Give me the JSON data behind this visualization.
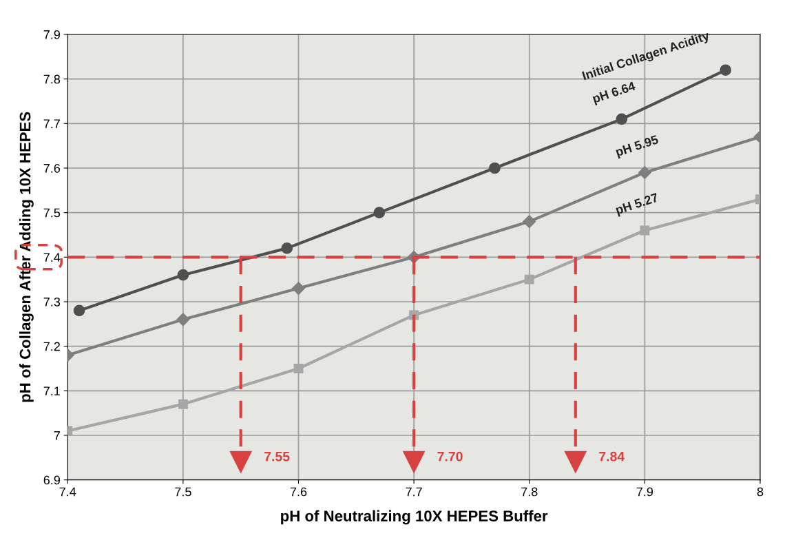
{
  "chart_data": {
    "type": "line",
    "xlabel": "pH of Neutralizing 10X HEPES Buffer",
    "ylabel": "pH of Collagen After Adding 10X HEPES",
    "annotations": [
      "Initial Collagen Acidity"
    ],
    "series": [
      {
        "name": "pH 6.64",
        "color": "#505050",
        "marker": "circle",
        "x": [
          7.41,
          7.5,
          7.59,
          7.67,
          7.77,
          7.88,
          7.97
        ],
        "values": [
          7.28,
          7.36,
          7.42,
          7.5,
          7.6,
          7.71,
          7.82
        ]
      },
      {
        "name": "pH 5.95",
        "color": "#7f7f7f",
        "marker": "diamond",
        "x": [
          7.4,
          7.5,
          7.6,
          7.7,
          7.8,
          7.9,
          8
        ],
        "values": [
          7.18,
          7.26,
          7.33,
          7.4,
          7.48,
          7.59,
          7.67
        ]
      },
      {
        "name": "pH 5.27",
        "color": "#a6a6a6",
        "marker": "square",
        "x": [
          7.4,
          7.5,
          7.6,
          7.7,
          7.8,
          7.9,
          8
        ],
        "values": [
          7.01,
          7.07,
          7.15,
          7.27,
          7.35,
          7.46,
          7.53
        ]
      }
    ],
    "ref_lines": [
      {
        "axis": "y",
        "value": 7.4,
        "color": "#d94040",
        "line_style": "dashed"
      },
      {
        "axis": "x",
        "value": 7.55,
        "label": "7.55",
        "color": "#d94040",
        "line_style": "dashed"
      },
      {
        "axis": "x",
        "value": 7.7,
        "label": "7.70",
        "color": "#d94040",
        "line_style": "dashed"
      },
      {
        "axis": "x",
        "value": 7.84,
        "label": "7.84",
        "color": "#d94040",
        "line_style": "dashed"
      }
    ],
    "xlim": [
      7.4,
      8
    ],
    "xticks": [
      7.4,
      7.5,
      7.6,
      7.7,
      7.8,
      7.9,
      8
    ],
    "ylim": [
      6.9,
      7.9
    ],
    "yticks": [
      6.9,
      7,
      7.1,
      7.2,
      7.3,
      7.4,
      7.5,
      7.6,
      7.7,
      7.8,
      7.9
    ],
    "grid": true
  }
}
